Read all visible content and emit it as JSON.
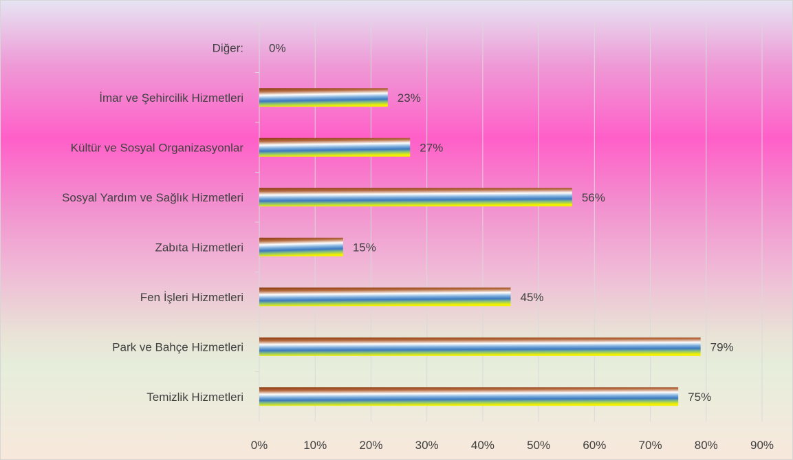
{
  "chart_data": {
    "type": "bar",
    "orientation": "horizontal",
    "categories": [
      "Temizlik Hizmetleri",
      "Park ve Bahçe Hizmetleri",
      "Fen İşleri Hizmetleri",
      "Zabıta Hizmetleri",
      "Sosyal Yardım ve Sağlık Hizmetleri",
      "Kültür ve Sosyal Organizasyonlar",
      "İmar ve Şehircilik Hizmetleri",
      "Diğer:"
    ],
    "values": [
      75,
      79,
      45,
      15,
      56,
      27,
      23,
      0
    ],
    "data_labels": [
      "75%",
      "79%",
      "45%",
      "15%",
      "56%",
      "27%",
      "23%",
      "0%"
    ],
    "x_ticks": [
      "0%",
      "10%",
      "20%",
      "30%",
      "40%",
      "50%",
      "60%",
      "70%",
      "80%",
      "90%"
    ],
    "xlim": [
      0,
      90
    ],
    "title": "",
    "xlabel": "",
    "ylabel": "",
    "grid": true,
    "legend": "none",
    "colors": {
      "bar_top": "#8b3a0e",
      "bar_mid": "#ffffff",
      "bar_blue": "#3a78c0",
      "bar_bottom": "#f0f000",
      "text": "#404040",
      "grid": "#d9d9d9"
    }
  }
}
